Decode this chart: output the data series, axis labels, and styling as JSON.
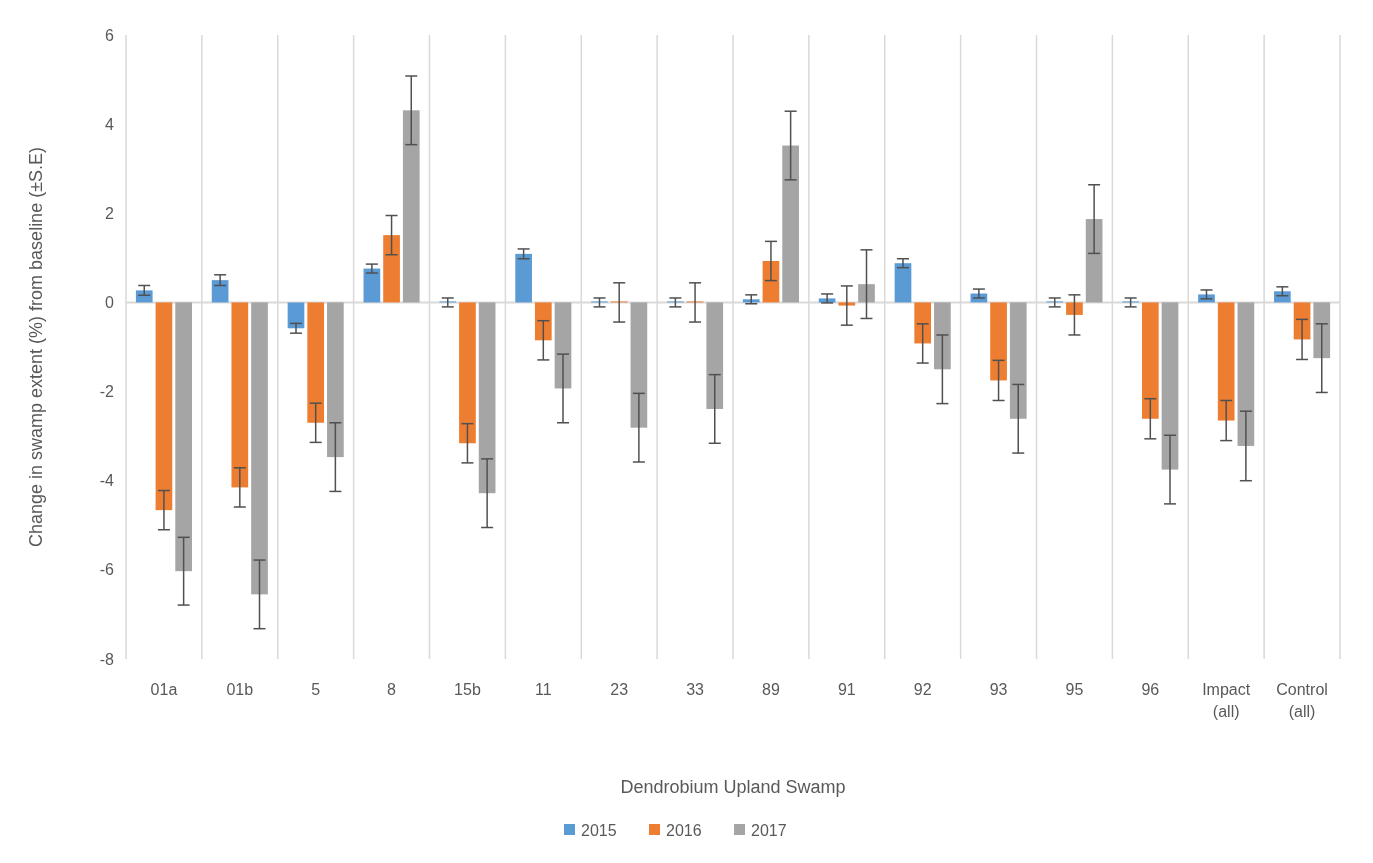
{
  "chart_data": {
    "type": "bar",
    "xlabel": "Dendrobium Upland Swamp",
    "ylabel": "Change in swamp extent (%) from baseline (±S.E)",
    "categories": [
      "01a",
      "01b",
      "5",
      "8",
      "15b",
      "11",
      "23",
      "33",
      "89",
      "91",
      "92",
      "93",
      "95",
      "96",
      "Impact (all)",
      "Control (all)"
    ],
    "series": [
      {
        "name": "2015",
        "color": "#5b9bd5",
        "values": [
          0.27,
          0.5,
          -0.58,
          0.76,
          0,
          1.09,
          0,
          0,
          0.07,
          0.09,
          0.88,
          0.2,
          0,
          0,
          0.18,
          0.25
        ],
        "errors": [
          0.11,
          0.12,
          0.11,
          0.1,
          0.1,
          0.11,
          0.1,
          0.1,
          0.1,
          0.1,
          0.1,
          0.1,
          0.1,
          0.1,
          0.1,
          0.1
        ]
      },
      {
        "name": "2016",
        "color": "#ed7d31",
        "values": [
          -4.66,
          -4.15,
          -2.7,
          1.51,
          -3.16,
          -0.85,
          0,
          0,
          0.93,
          -0.07,
          -0.92,
          -1.75,
          -0.28,
          -2.61,
          -2.65,
          -0.83
        ],
        "errors": [
          0.44,
          0.44,
          0.44,
          0.44,
          0.44,
          0.44,
          0.44,
          0.44,
          0.44,
          0.44,
          0.44,
          0.45,
          0.45,
          0.45,
          0.45,
          0.45
        ]
      },
      {
        "name": "2017",
        "color": "#a5a5a5",
        "values": [
          -6.03,
          -6.55,
          -3.47,
          4.31,
          -4.28,
          -1.93,
          -2.81,
          -2.39,
          3.52,
          0.41,
          -1.5,
          -2.61,
          1.87,
          -3.75,
          -3.22,
          -1.25
        ],
        "errors": [
          0.76,
          0.77,
          0.77,
          0.77,
          0.77,
          0.77,
          0.77,
          0.77,
          0.77,
          0.77,
          0.77,
          0.77,
          0.77,
          0.77,
          0.78,
          0.77
        ]
      }
    ],
    "ylim": [
      -8,
      6
    ],
    "yticks": [
      -8,
      -6,
      -4,
      -2,
      0,
      2,
      4,
      6
    ],
    "grid": "x",
    "legend": "bottom"
  }
}
